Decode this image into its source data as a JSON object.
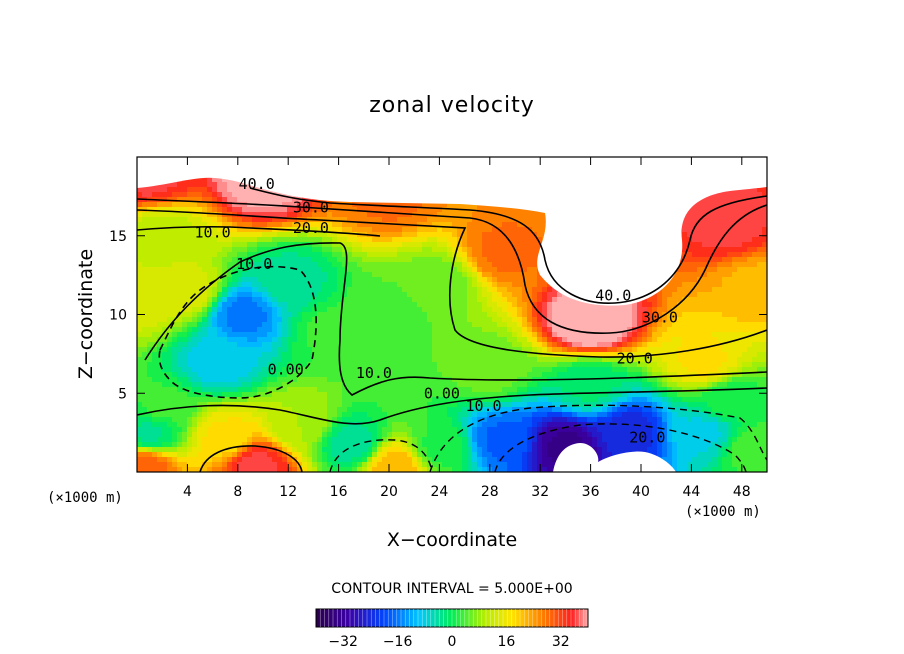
{
  "chart_data": {
    "type": "heatmap",
    "title": "zonal velocity",
    "xlabel": "X−coordinate",
    "ylabel": "Z−coordinate",
    "x_unit": "(×1000 m)",
    "y_unit": "(×1000 m)",
    "xlim": [
      0,
      50
    ],
    "ylim": [
      0,
      20
    ],
    "x_ticks": [
      "4",
      "8",
      "12",
      "16",
      "20",
      "24",
      "28",
      "32",
      "36",
      "40",
      "44",
      "48"
    ],
    "y_ticks": [
      "5",
      "10",
      "15"
    ],
    "contour_interval_text": "CONTOUR INTERVAL = 5.000E+00",
    "colorbar": {
      "min": -40,
      "max": 40,
      "ticks": [
        "−32",
        "−16",
        "0",
        "16",
        "32"
      ],
      "tick_values": [
        -32,
        -16,
        0,
        16,
        32
      ]
    },
    "contour_labels": [
      {
        "text": "40.0",
        "x": 9.5,
        "y": 18.3
      },
      {
        "text": "30.0",
        "x": 13.8,
        "y": 16.8
      },
      {
        "text": "20.0",
        "x": 13.8,
        "y": 15.5
      },
      {
        "text": "10.0",
        "x": 6.0,
        "y": 15.2
      },
      {
        "text": "10.0",
        "x": 9.3,
        "y": 13.2
      },
      {
        "text": "0.00",
        "x": 11.8,
        "y": 6.5
      },
      {
        "text": "10.0",
        "x": 18.8,
        "y": 6.3
      },
      {
        "text": "0.00",
        "x": 24.2,
        "y": 5.0
      },
      {
        "text": "10.0",
        "x": 27.5,
        "y": 4.2
      },
      {
        "text": "40.0",
        "x": 37.8,
        "y": 11.2
      },
      {
        "text": "30.0",
        "x": 41.5,
        "y": 9.8
      },
      {
        "text": "20.0",
        "x": 39.5,
        "y": 7.2
      },
      {
        "text": "20.0",
        "x": 40.5,
        "y": 2.2
      }
    ],
    "field_centers": [
      {
        "x": 1,
        "y": 18.8,
        "v": 36
      },
      {
        "x": 10,
        "y": 18.5,
        "v": 42
      },
      {
        "x": 20,
        "y": 17.5,
        "v": 28
      },
      {
        "x": 29,
        "y": 14,
        "v": 28
      },
      {
        "x": 36,
        "y": 9.5,
        "v": 45
      },
      {
        "x": 47,
        "y": 15.5,
        "v": 36
      },
      {
        "x": 49,
        "y": 12,
        "v": 22
      },
      {
        "x": 45,
        "y": 7,
        "v": 18
      },
      {
        "x": 2,
        "y": 15,
        "v": 11
      },
      {
        "x": 0.5,
        "y": 11,
        "v": 14
      },
      {
        "x": 4,
        "y": 11.5,
        "v": 14
      },
      {
        "x": 8.5,
        "y": 10,
        "v": -16
      },
      {
        "x": 6.5,
        "y": 7,
        "v": -9
      },
      {
        "x": 12,
        "y": 12,
        "v": -4
      },
      {
        "x": 15.5,
        "y": 9,
        "v": 3
      },
      {
        "x": 20,
        "y": 10,
        "v": 4
      },
      {
        "x": 24,
        "y": 12,
        "v": 6
      },
      {
        "x": 2,
        "y": 4,
        "v": 3
      },
      {
        "x": 9.5,
        "y": 0.4,
        "v": 36
      },
      {
        "x": 7,
        "y": 2.2,
        "v": 18
      },
      {
        "x": 13,
        "y": 3,
        "v": 10
      },
      {
        "x": 17,
        "y": 1.8,
        "v": -4
      },
      {
        "x": 20.5,
        "y": 0.3,
        "v": 22
      },
      {
        "x": 24,
        "y": 1.5,
        "v": 2
      },
      {
        "x": 0.5,
        "y": 0.3,
        "v": 30
      },
      {
        "x": 1,
        "y": 2.5,
        "v": -3
      },
      {
        "x": 34,
        "y": 1.6,
        "v": -33
      },
      {
        "x": 39,
        "y": 2.5,
        "v": -24
      },
      {
        "x": 29,
        "y": 2,
        "v": -18
      },
      {
        "x": 45,
        "y": 2.5,
        "v": -8
      },
      {
        "x": 49,
        "y": 1.5,
        "v": 4
      },
      {
        "x": 36,
        "y": 5.5,
        "v": -2
      },
      {
        "x": 28,
        "y": 6.5,
        "v": 6
      },
      {
        "x": 47,
        "y": 4.5,
        "v": 1
      }
    ]
  },
  "colors": {
    "axes": "#000000",
    "background": "#ffffff",
    "missing": "#ffffff"
  }
}
